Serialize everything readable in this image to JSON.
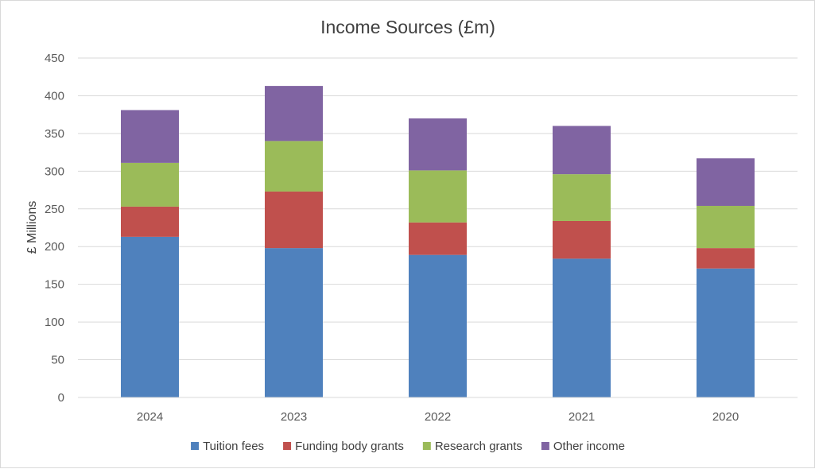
{
  "chart_data": {
    "type": "bar",
    "stacked": true,
    "title": "Income Sources (£m)",
    "xlabel": "",
    "ylabel": "£ Millions",
    "ylim": [
      0,
      450
    ],
    "yticks": [
      0,
      50,
      100,
      150,
      200,
      250,
      300,
      350,
      400,
      450
    ],
    "grid": true,
    "legend_position": "bottom",
    "categories": [
      "2024",
      "2023",
      "2022",
      "2021",
      "2020"
    ],
    "series": [
      {
        "name": "Tuition fees",
        "color": "#4f81bd",
        "values": [
          213,
          198,
          189,
          184,
          171
        ]
      },
      {
        "name": "Funding body grants",
        "color": "#c0504d",
        "values": [
          40,
          75,
          43,
          50,
          27
        ]
      },
      {
        "name": "Research grants",
        "color": "#9bbb59",
        "values": [
          58,
          67,
          69,
          62,
          56
        ]
      },
      {
        "name": "Other income",
        "color": "#8064a2",
        "values": [
          70,
          73,
          69,
          64,
          63
        ]
      }
    ]
  }
}
